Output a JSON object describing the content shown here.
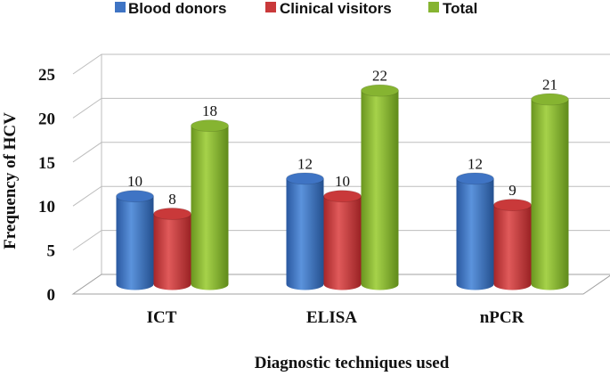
{
  "chart_data": {
    "type": "bar",
    "title": "",
    "xlabel": "Diagnostic techniques used",
    "ylabel": "Frequency of HCV",
    "categories": [
      "ICT",
      "ELISA",
      "nPCR"
    ],
    "series": [
      {
        "name": "Blood donors",
        "values": [
          10,
          12,
          12
        ],
        "color": "#3f74c4"
      },
      {
        "name": "Clinical visitors",
        "values": [
          8,
          10,
          9
        ],
        "color": "#c9393a"
      },
      {
        "name": "Total",
        "values": [
          18,
          22,
          21
        ],
        "color": "#86b431"
      }
    ],
    "ylim": [
      0,
      25
    ],
    "yticks": [
      0,
      5,
      10,
      15,
      20,
      25
    ],
    "grid": true,
    "legend": "top"
  }
}
